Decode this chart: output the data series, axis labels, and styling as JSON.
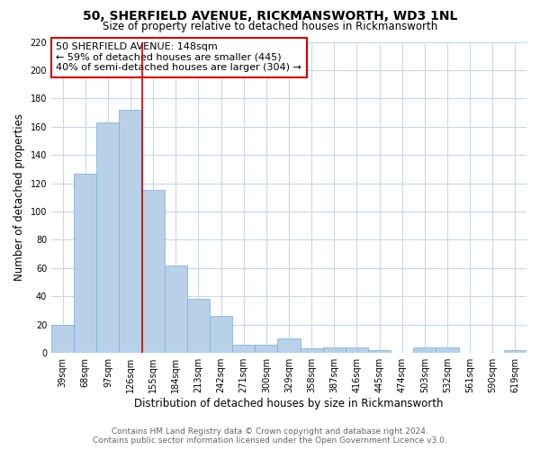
{
  "title": "50, SHERFIELD AVENUE, RICKMANSWORTH, WD3 1NL",
  "subtitle": "Size of property relative to detached houses in Rickmansworth",
  "xlabel": "Distribution of detached houses by size in Rickmansworth",
  "ylabel": "Number of detached properties",
  "bar_labels": [
    "39sqm",
    "68sqm",
    "97sqm",
    "126sqm",
    "155sqm",
    "184sqm",
    "213sqm",
    "242sqm",
    "271sqm",
    "300sqm",
    "329sqm",
    "358sqm",
    "387sqm",
    "416sqm",
    "445sqm",
    "474sqm",
    "503sqm",
    "532sqm",
    "561sqm",
    "590sqm",
    "619sqm"
  ],
  "bar_values": [
    20,
    127,
    163,
    172,
    115,
    62,
    38,
    26,
    6,
    6,
    10,
    3,
    4,
    4,
    2,
    0,
    4,
    4,
    0,
    0,
    2
  ],
  "bar_color": "#b8d0e8",
  "bar_edgecolor": "#7aadd4",
  "vline_x": 3.5,
  "vline_color": "#cc0000",
  "annotation_line1": "50 SHERFIELD AVENUE: 148sqm",
  "annotation_line2": "← 59% of detached houses are smaller (445)",
  "annotation_line3": "40% of semi-detached houses are larger (304) →",
  "annotation_box_color": "#ffffff",
  "annotation_box_edgecolor": "#cc0000",
  "ylim": [
    0,
    220
  ],
  "yticks": [
    0,
    20,
    40,
    60,
    80,
    100,
    120,
    140,
    160,
    180,
    200,
    220
  ],
  "footer_line1": "Contains HM Land Registry data © Crown copyright and database right 2024.",
  "footer_line2": "Contains public sector information licensed under the Open Government Licence v3.0.",
  "bg_color": "#ffffff",
  "grid_color": "#c8d8e8",
  "title_fontsize": 10,
  "subtitle_fontsize": 8.5,
  "axis_label_fontsize": 8.5,
  "tick_fontsize": 7,
  "annotation_fontsize": 8,
  "footer_fontsize": 6.5
}
